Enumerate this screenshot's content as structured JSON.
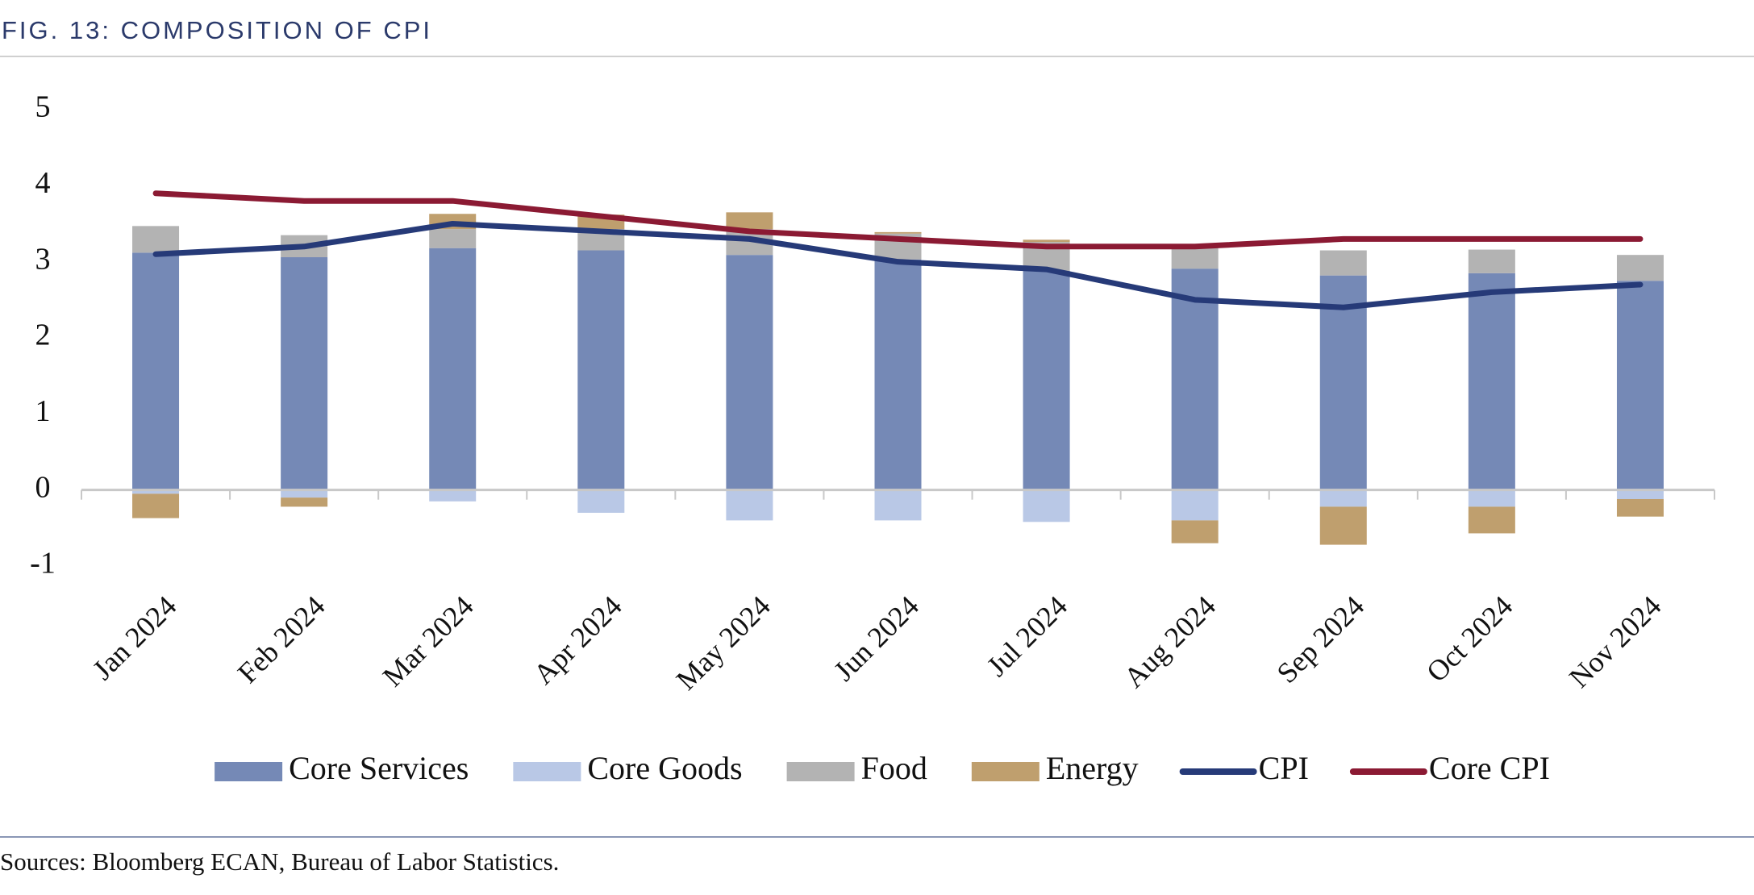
{
  "chart_data": {
    "type": "bar",
    "stacked": true,
    "title": "FIG. 13: COMPOSITION OF CPI",
    "source": "Sources: Bloomberg ECAN, Bureau of Labor Statistics.",
    "categories": [
      "Jan 2024",
      "Feb 2024",
      "Mar 2024",
      "Apr 2024",
      "May 2024",
      "Jun 2024",
      "Jul 2024",
      "Aug 2024",
      "Sep 2024",
      "Oct 2024",
      "Nov 2024"
    ],
    "series": [
      {
        "name": "Core Services",
        "color": "#7589b6",
        "values": [
          3.12,
          3.06,
          3.18,
          3.15,
          3.09,
          3.03,
          2.88,
          2.91,
          2.82,
          2.85,
          2.75
        ]
      },
      {
        "name": "Core Goods",
        "color": "#b9c8e6",
        "values": [
          -0.05,
          -0.1,
          -0.15,
          -0.3,
          -0.4,
          -0.4,
          -0.42,
          -0.4,
          -0.22,
          -0.22,
          -0.12
        ]
      },
      {
        "name": "Food",
        "color": "#b3b3b3",
        "values": [
          0.35,
          0.29,
          0.25,
          0.28,
          0.34,
          0.34,
          0.38,
          0.27,
          0.33,
          0.31,
          0.34
        ]
      },
      {
        "name": "Energy",
        "color": "#bf9f6e",
        "values": [
          -0.32,
          -0.12,
          0.2,
          0.19,
          0.22,
          0.02,
          0.03,
          -0.3,
          -0.5,
          -0.35,
          -0.23
        ]
      },
      {
        "name": "CPI",
        "type": "line",
        "color": "#263a78",
        "values": [
          3.1,
          3.2,
          3.5,
          3.4,
          3.3,
          3.0,
          2.9,
          2.5,
          2.4,
          2.6,
          2.7
        ]
      },
      {
        "name": "Core CPI",
        "type": "line",
        "color": "#8b1a33",
        "values": [
          3.9,
          3.8,
          3.8,
          3.6,
          3.4,
          3.3,
          3.2,
          3.2,
          3.3,
          3.3,
          3.3
        ]
      }
    ],
    "ylim": [
      -1,
      5
    ],
    "yticks": [
      -1,
      0,
      1,
      2,
      3,
      4,
      5
    ],
    "grid": false,
    "legend": "bottom"
  }
}
